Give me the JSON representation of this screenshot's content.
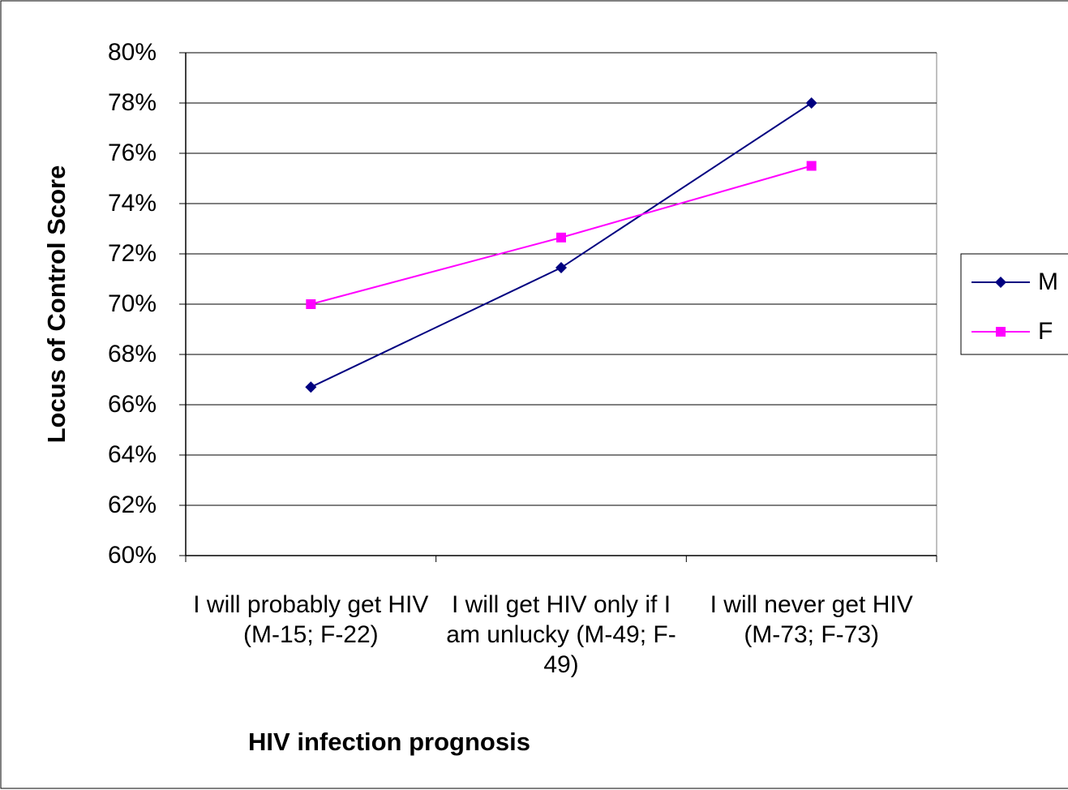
{
  "chart_data": {
    "type": "line",
    "x_label": "HIV infection prognosis",
    "y_label": "Locus of Control Score",
    "categories": [
      "I will probably get HIV (M-15; F-22)",
      "I will get HIV only if I am unlucky (M-49; F-49)",
      "I will never get HIV (M-73; F-73)"
    ],
    "series": [
      {
        "name": "M",
        "color": "#000080",
        "marker": "diamond",
        "values": [
          66.7,
          71.45,
          78.0
        ]
      },
      {
        "name": "F",
        "color": "#ff00ff",
        "marker": "square",
        "values": [
          70.0,
          72.65,
          75.5
        ]
      }
    ],
    "ylim": [
      60,
      80
    ],
    "yticks": [
      {
        "value": 60,
        "label": "60%"
      },
      {
        "value": 62,
        "label": "62%"
      },
      {
        "value": 64,
        "label": "64%"
      },
      {
        "value": 66,
        "label": "66%"
      },
      {
        "value": 68,
        "label": "68%"
      },
      {
        "value": 70,
        "label": "70%"
      },
      {
        "value": 72,
        "label": "72%"
      },
      {
        "value": 74,
        "label": "74%"
      },
      {
        "value": 76,
        "label": "76%"
      },
      {
        "value": 78,
        "label": "78%"
      },
      {
        "value": 80,
        "label": "80%"
      }
    ],
    "grid": true,
    "legend": "right"
  }
}
